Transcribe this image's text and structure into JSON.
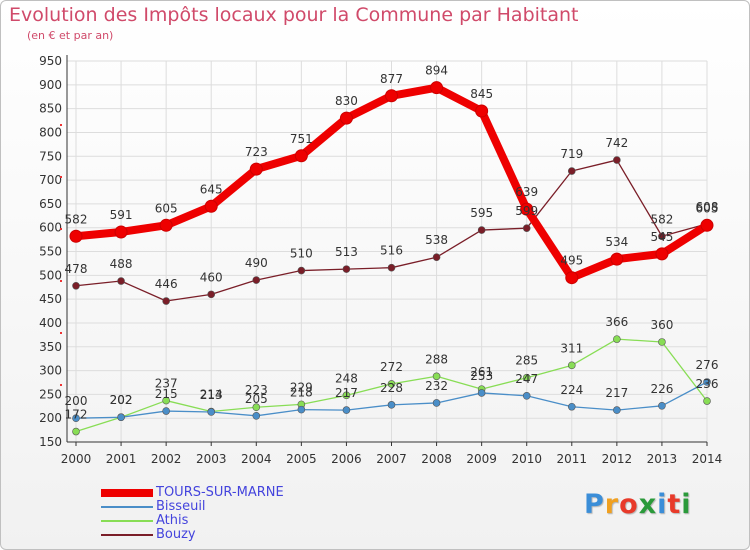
{
  "title": "Evolution des Impôts locaux pour la Commune par Habitant",
  "subtitle": "(en € et par an)",
  "logo": {
    "text": "Proxiti",
    "letter_colors": [
      "#3b8ed8",
      "#f0a020",
      "#e83a2a",
      "#2a9a3a",
      "#3b8ed8",
      "#e83a2a",
      "#2a9a3a"
    ]
  },
  "colors": {
    "title": "#d04a6a",
    "grid": "#dddddd",
    "axis": "#333333",
    "label": "#333333"
  },
  "chart_data": {
    "type": "line",
    "title": "Evolution des Impôts locaux pour la Commune par Habitant",
    "subtitle": "(en € et par an)",
    "xlabel": "",
    "ylabel": "",
    "ylim": [
      150,
      950
    ],
    "yticks": [
      150,
      200,
      250,
      300,
      350,
      400,
      450,
      500,
      550,
      600,
      650,
      700,
      750,
      800,
      850,
      900,
      950
    ],
    "grid": true,
    "legend_position": "bottom-left",
    "x": [
      "2000",
      "2001",
      "2002",
      "2003",
      "2004",
      "2005",
      "2006",
      "2007",
      "2008",
      "2009",
      "2010",
      "2011",
      "2012",
      "2013",
      "2014"
    ],
    "series": [
      {
        "name": "Bouzy",
        "color": "#7a1e28",
        "values": [
          478,
          488,
          446,
          460,
          490,
          510,
          513,
          516,
          538,
          595,
          599,
          719,
          742,
          582,
          608
        ]
      },
      {
        "name": "Athis",
        "color": "#88dd55",
        "values": [
          172,
          202,
          237,
          214,
          223,
          229,
          248,
          272,
          288,
          261,
          285,
          311,
          366,
          360,
          236
        ]
      },
      {
        "name": "Bisseuil",
        "color": "#4a8ec8",
        "values": [
          200,
          202,
          215,
          213,
          205,
          218,
          217,
          228,
          232,
          253,
          247,
          224,
          217,
          226,
          276
        ]
      },
      {
        "name": "TOURS-SUR-MARNE",
        "color": "#ee0000",
        "values": [
          582,
          591,
          605,
          645,
          723,
          751,
          830,
          877,
          894,
          845,
          639,
          495,
          534,
          545,
          605
        ]
      }
    ],
    "legend": [
      {
        "name": "TOURS-SUR-MARNE",
        "color": "#ee0000",
        "text_color": "#4444dd"
      },
      {
        "name": "Bisseuil",
        "color": "#4a8ec8",
        "text_color": "#4444dd"
      },
      {
        "name": "Athis",
        "color": "#88dd55",
        "text_color": "#4444dd"
      },
      {
        "name": "Bouzy",
        "color": "#7a1e28",
        "text_color": "#4444dd"
      }
    ]
  }
}
